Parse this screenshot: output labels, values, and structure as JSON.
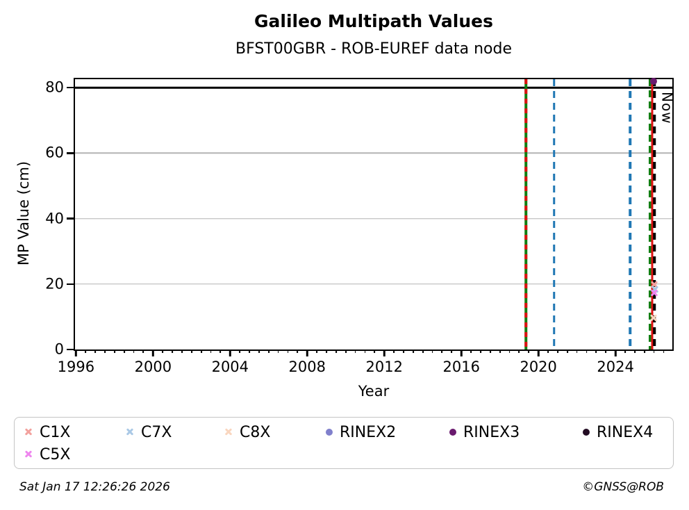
{
  "header": {
    "title": "Galileo Multipath Values",
    "subtitle": "BFST00GBR - ROB-EUREF data node"
  },
  "footer": {
    "timestamp": "Sat Jan 17 12:26:26 2026",
    "credit": "©GNSS@ROB"
  },
  "chart_data": {
    "type": "scatter",
    "title": "Galileo Multipath Values",
    "subtitle": "BFST00GBR - ROB-EUREF data node",
    "xlabel": "Year",
    "ylabel": "MP Value (cm)",
    "xlim": [
      1995.95,
      2026.95
    ],
    "ylim": [
      0,
      82.6
    ],
    "x_major_ticks": [
      1996,
      2000,
      2004,
      2008,
      2012,
      2016,
      2020,
      2024
    ],
    "x_minor_tick_step": 0.5,
    "y_ticks": [
      0,
      20,
      40,
      60,
      80
    ],
    "grid": true,
    "legend_position": "bottom",
    "gridlines_y": [
      {
        "value": 20,
        "color": "#b4b4b4",
        "width": 1.5
      },
      {
        "value": 40,
        "color": "#b4b4b4",
        "width": 1.5
      },
      {
        "value": 60,
        "color": "#b4b4b4",
        "width": 1.5
      },
      {
        "value": 80,
        "color": "#000000",
        "width": 2.5
      }
    ],
    "vertical_lines": [
      {
        "year": 2019.35,
        "color": "#127d12",
        "style": "solid",
        "width": 3.5
      },
      {
        "year": 2019.35,
        "color": "#dd1111",
        "style": "dashed",
        "dash": [
          7,
          7
        ],
        "width": 3.5
      },
      {
        "year": 2020.82,
        "color": "#1f77b4",
        "style": "dashed",
        "dash": [
          10,
          7
        ],
        "width": 3.5
      },
      {
        "year": 2024.76,
        "color": "#1f77b4",
        "style": "dashed",
        "dash": [
          10,
          7
        ],
        "width": 3.5
      },
      {
        "year": 2025.78,
        "color": "#127d12",
        "style": "dashed",
        "dash": [
          10,
          6
        ],
        "width": 4
      },
      {
        "year": 2025.9,
        "color": "#dd1111",
        "style": "solid",
        "width": 3
      },
      {
        "year": 2026.03,
        "color": "#000000",
        "style": "dashed",
        "dash": [
          10,
          7
        ],
        "width": 3.5,
        "label": "Now"
      }
    ],
    "points": [
      {
        "series": "RINEX3",
        "x": 2025.97,
        "y": 82.0,
        "marker": "circle",
        "color": "#6a1a6e"
      },
      {
        "series": "C1X",
        "x": 2026.0,
        "y": 19.9,
        "marker": "x",
        "color": "#f2a19d"
      },
      {
        "series": "C7X",
        "x": 2026.05,
        "y": 18.3,
        "marker": "x",
        "color": "#aac9e6"
      },
      {
        "series": "C5X",
        "x": 2026.0,
        "y": 17.2,
        "marker": "x",
        "color": "#ee87ee"
      },
      {
        "series": "C8X",
        "x": 2025.97,
        "y": 9.7,
        "marker": "x",
        "color": "#f9d6bf"
      }
    ]
  },
  "legend": {
    "entries": [
      {
        "label": "C1X",
        "marker": "x",
        "color": "#f2a19d"
      },
      {
        "label": "C7X",
        "marker": "x",
        "color": "#aac9e6"
      },
      {
        "label": "C8X",
        "marker": "x",
        "color": "#f9d6bf"
      },
      {
        "label": "RINEX2",
        "marker": "circle",
        "color": "#8080cc"
      },
      {
        "label": "RINEX3",
        "marker": "circle",
        "color": "#6a1a6e"
      },
      {
        "label": "RINEX4",
        "marker": "circle",
        "color": "#230c23"
      },
      {
        "label": "C5X",
        "marker": "x",
        "color": "#ee87ee"
      }
    ]
  }
}
